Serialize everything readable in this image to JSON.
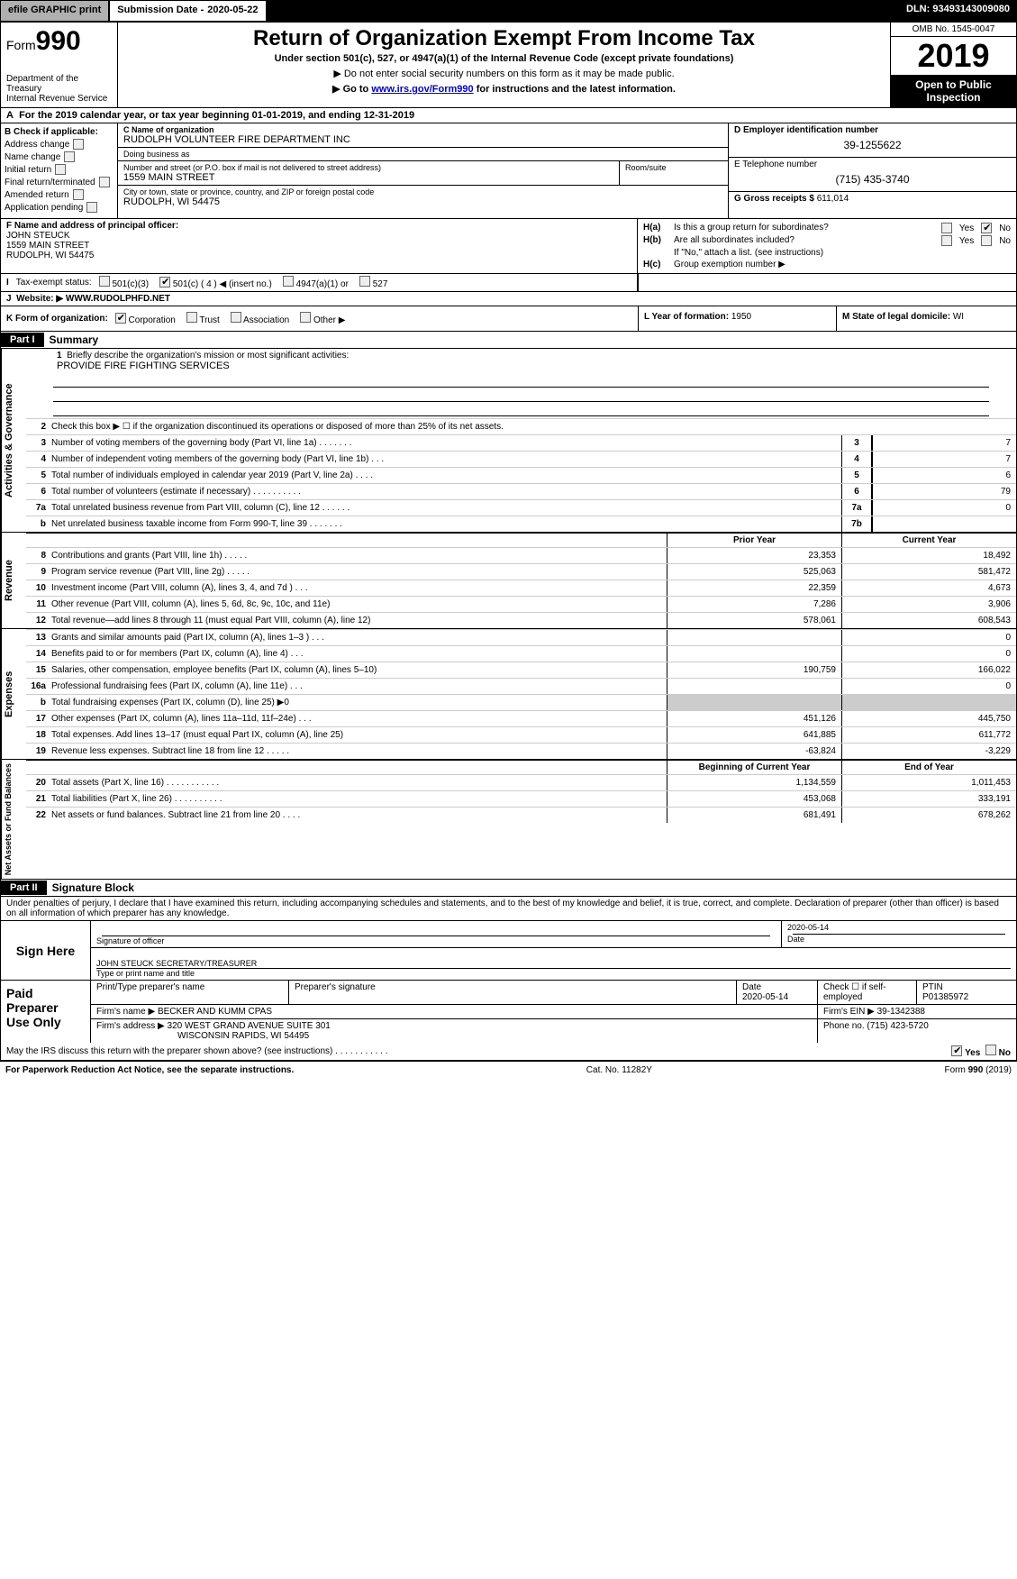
{
  "topbar": {
    "efile": "efile GRAPHIC print",
    "submission_label": "Submission Date - ",
    "submission_date": "2020-05-22",
    "dln_label": "DLN: ",
    "dln": "93493143009080"
  },
  "header": {
    "form_prefix": "Form",
    "form_number": "990",
    "dept": "Department of the Treasury\nInternal Revenue Service",
    "title": "Return of Organization Exempt From Income Tax",
    "subtitle": "Under section 501(c), 527, or 4947(a)(1) of the Internal Revenue Code (except private foundations)",
    "note1": "▶ Do not enter social security numbers on this form as it may be made public.",
    "note2_pre": "▶ Go to ",
    "note2_link": "www.irs.gov/Form990",
    "note2_post": " for instructions and the latest information.",
    "omb": "OMB No. 1545-0047",
    "year": "2019",
    "open": "Open to Public\nInspection"
  },
  "lineA": {
    "text_pre": "For the 2019 calendar year, or tax year beginning ",
    "begin": "01-01-2019",
    "mid": ", and ending ",
    "end": "12-31-2019"
  },
  "B": {
    "label": "Check if applicable:",
    "items": [
      "Address change",
      "Name change",
      "Initial return",
      "Final return/terminated",
      "Amended return",
      "Application pending"
    ]
  },
  "C": {
    "name_label": "C Name of organization",
    "name": "RUDOLPH VOLUNTEER FIRE DEPARTMENT INC",
    "dba_label": "Doing business as",
    "dba": "",
    "street_label": "Number and street (or P.O. box if mail is not delivered to street address)",
    "street": "1559 MAIN STREET",
    "room_label": "Room/suite",
    "city_label": "City or town, state or province, country, and ZIP or foreign postal code",
    "city": "RUDOLPH, WI  54475"
  },
  "D": {
    "label": "D Employer identification number",
    "value": "39-1255622"
  },
  "E": {
    "label": "E Telephone number",
    "value": "(715) 435-3740"
  },
  "G": {
    "label": "G Gross receipts $ ",
    "value": "611,014"
  },
  "F": {
    "label": "F Name and address of principal officer:",
    "name": "JOHN STEUCK",
    "street": "1559 MAIN STREET",
    "city": "RUDOLPH, WI  54475"
  },
  "H": {
    "a_label": "H(a)",
    "a_text": "Is this a group return for subordinates?",
    "a_yes": "Yes",
    "a_no": "No",
    "b_label": "H(b)",
    "b_text": "Are all subordinates included?",
    "b_yes": "Yes",
    "b_no": "No",
    "b_note": "If \"No,\" attach a list. (see instructions)",
    "c_label": "H(c)",
    "c_text": "Group exemption number ▶"
  },
  "I": {
    "label": "Tax-exempt status:",
    "opts": [
      "501(c)(3)",
      "501(c) ( 4 ) ◀ (insert no.)",
      "4947(a)(1) or",
      "527"
    ],
    "checked_index": 1
  },
  "J": {
    "label": "Website: ▶",
    "value": "WWW.RUDOLPHFD.NET"
  },
  "K": {
    "label": "K Form of organization:",
    "opts": [
      "Corporation",
      "Trust",
      "Association",
      "Other ▶"
    ],
    "checked_index": 0
  },
  "L": {
    "label": "L Year of formation: ",
    "value": "1950"
  },
  "M": {
    "label": "M State of legal domicile: ",
    "value": "WI"
  },
  "part1": {
    "header": "Part I",
    "title": "Summary"
  },
  "governance": {
    "side": "Activities & Governance",
    "line1_label": "Briefly describe the organization's mission or most significant activities:",
    "line1_value": "PROVIDE FIRE FIGHTING SERVICES",
    "line2": "Check this box ▶ ☐ if the organization discontinued its operations or disposed of more than 25% of its net assets.",
    "rows": [
      {
        "n": "3",
        "d": "Number of voting members of the governing body (Part VI, line 1a)   .     .     .     .     .     .     .",
        "box": "3",
        "v": "7"
      },
      {
        "n": "4",
        "d": "Number of independent voting members of the governing body (Part VI, line 1b)    .     .     .",
        "box": "4",
        "v": "7"
      },
      {
        "n": "5",
        "d": "Total number of individuals employed in calendar year 2019 (Part V, line 2a)    .     .     .     .",
        "box": "5",
        "v": "6"
      },
      {
        "n": "6",
        "d": "Total number of volunteers (estimate if necessary)    .     .     .     .     .     .     .     .     .     .",
        "box": "6",
        "v": "79"
      },
      {
        "n": "7a",
        "d": "Total unrelated business revenue from Part VIII, column (C), line 12    .     .     .     .     .     .",
        "box": "7a",
        "v": "0"
      },
      {
        "n": "b",
        "d": "Net unrelated business taxable income from Form 990-T, line 39    .     .     .     .     .     .     .",
        "box": "7b",
        "v": ""
      }
    ]
  },
  "twocol": {
    "prior": "Prior Year",
    "current": "Current Year",
    "boy": "Beginning of Current Year",
    "eoy": "End of Year"
  },
  "revenue": {
    "side": "Revenue",
    "rows": [
      {
        "n": "8",
        "d": "Contributions and grants (Part VIII, line 1h)    .     .     .     .     .",
        "p": "23,353",
        "c": "18,492"
      },
      {
        "n": "9",
        "d": "Program service revenue (Part VIII, line 2g)    .     .     .     .     .",
        "p": "525,063",
        "c": "581,472"
      },
      {
        "n": "10",
        "d": "Investment income (Part VIII, column (A), lines 3, 4, and 7d )    .     .     .",
        "p": "22,359",
        "c": "4,673"
      },
      {
        "n": "11",
        "d": "Other revenue (Part VIII, column (A), lines 5, 6d, 8c, 9c, 10c, and 11e)",
        "p": "7,286",
        "c": "3,906"
      },
      {
        "n": "12",
        "d": "Total revenue—add lines 8 through 11 (must equal Part VIII, column (A), line 12)",
        "p": "578,061",
        "c": "608,543"
      }
    ]
  },
  "expenses": {
    "side": "Expenses",
    "rows": [
      {
        "n": "13",
        "d": "Grants and similar amounts paid (Part IX, column (A), lines 1–3 )    .     .     .",
        "p": "",
        "c": "0"
      },
      {
        "n": "14",
        "d": "Benefits paid to or for members (Part IX, column (A), line 4)    .     .     .",
        "p": "",
        "c": "0"
      },
      {
        "n": "15",
        "d": "Salaries, other compensation, employee benefits (Part IX, column (A), lines 5–10)",
        "p": "190,759",
        "c": "166,022"
      },
      {
        "n": "16a",
        "d": "Professional fundraising fees (Part IX, column (A), line 11e)    .     .     .",
        "p": "",
        "c": "0"
      },
      {
        "n": "b",
        "d": "Total fundraising expenses (Part IX, column (D), line 25) ▶0",
        "p": "grey",
        "c": "grey"
      },
      {
        "n": "17",
        "d": "Other expenses (Part IX, column (A), lines 11a–11d, 11f–24e)    .     .     .",
        "p": "451,126",
        "c": "445,750"
      },
      {
        "n": "18",
        "d": "Total expenses. Add lines 13–17 (must equal Part IX, column (A), line 25)",
        "p": "641,885",
        "c": "611,772"
      },
      {
        "n": "19",
        "d": "Revenue less expenses. Subtract line 18 from line 12    .     .     .     .     .",
        "p": "-63,824",
        "c": "-3,229"
      }
    ]
  },
  "netassets": {
    "side": "Net Assets or Fund Balances",
    "rows": [
      {
        "n": "20",
        "d": "Total assets (Part X, line 16)    .     .     .     .     .     .     .     .     .     .     .",
        "p": "1,134,559",
        "c": "1,011,453"
      },
      {
        "n": "21",
        "d": "Total liabilities (Part X, line 26)    .     .     .     .     .     .     .     .     .     .",
        "p": "453,068",
        "c": "333,191"
      },
      {
        "n": "22",
        "d": "Net assets or fund balances. Subtract line 21 from line 20    .     .     .     .",
        "p": "681,491",
        "c": "678,262"
      }
    ]
  },
  "part2": {
    "header": "Part II",
    "title": "Signature Block"
  },
  "sig": {
    "intro": "Under penalties of perjury, I declare that I have examined this return, including accompanying schedules and statements, and to the best of my knowledge and belief, it is true, correct, and complete. Declaration of preparer (other than officer) is based on all information of which preparer has any knowledge.",
    "sign_here": "Sign Here",
    "sig_officer": "Signature of officer",
    "date": "2020-05-14",
    "date_label": "Date",
    "name": "JOHN STEUCK  SECRETARY/TREASURER",
    "name_label": "Type or print name and title"
  },
  "prep": {
    "left": "Paid Preparer Use Only",
    "h1": "Print/Type preparer's name",
    "h2": "Preparer's signature",
    "h3": "Date",
    "h4_pre": "Check ☐ if self-employed",
    "h5": "PTIN",
    "date": "2020-05-14",
    "ptin": "P01385972",
    "firm_label": "Firm's name    ▶",
    "firm": "BECKER AND KUMM CPAS",
    "ein_label": "Firm's EIN ▶",
    "ein": "39-1342388",
    "addr_label": "Firm's address ▶",
    "addr1": "320 WEST GRAND AVENUE SUITE 301",
    "addr2": "WISCONSIN RAPIDS, WI  54495",
    "phone_label": "Phone no. ",
    "phone": "(715) 423-5720"
  },
  "discuss": {
    "text": "May the IRS discuss this return with the preparer shown above? (see instructions)    .     .     .     .     .     .     .     .     .     .     .",
    "yes": "Yes",
    "no": "No"
  },
  "footer": {
    "left": "For Paperwork Reduction Act Notice, see the separate instructions.",
    "mid": "Cat. No. 11282Y",
    "right_pre": "Form ",
    "right_bold": "990",
    "right_post": " (2019)"
  }
}
